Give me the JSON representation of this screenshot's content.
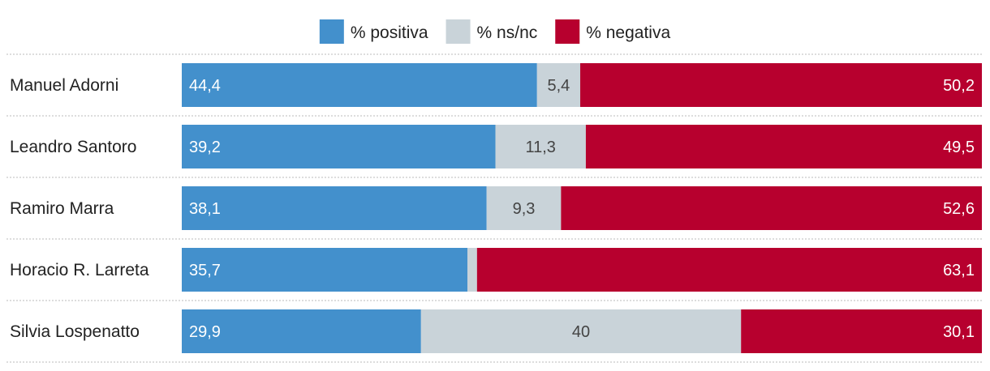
{
  "chart_data": {
    "type": "bar",
    "orientation": "horizontal",
    "stacked": true,
    "stack_total": 100,
    "grid": false,
    "legend_position": "top-center",
    "categories": [
      "Manuel Adorni",
      "Leandro Santoro",
      "Ramiro Marra",
      "Horacio R. Larreta",
      "Silvia Lospenatto"
    ],
    "series": [
      {
        "name": "% positiva",
        "color": "#4390CC",
        "label_color": "#FFFFFF",
        "values": [
          44.4,
          39.2,
          38.1,
          35.7,
          29.9
        ],
        "labels": [
          "44,4",
          "39,2",
          "38,1",
          "35,7",
          "29,9"
        ]
      },
      {
        "name": "% ns/nc",
        "color": "#C9D3D9",
        "label_color": "#444444",
        "values": [
          5.4,
          11.3,
          9.3,
          1.2,
          40
        ],
        "labels": [
          "5,4",
          "11,3",
          "9,3",
          "",
          "40"
        ]
      },
      {
        "name": "% negativa",
        "color": "#B7002E",
        "label_color": "#FFFFFF",
        "values": [
          50.2,
          49.5,
          52.6,
          63.1,
          30.1
        ],
        "labels": [
          "50,2",
          "49,5",
          "52,6",
          "63,1",
          "30,1"
        ]
      }
    ]
  }
}
